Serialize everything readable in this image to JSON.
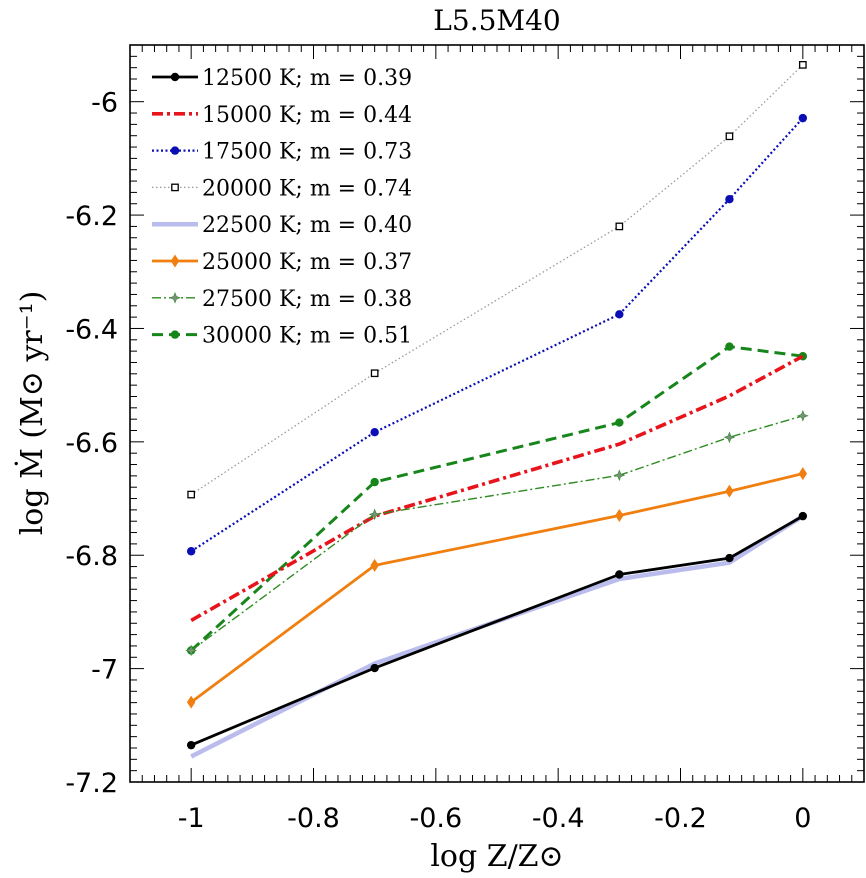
{
  "chart_data": {
    "type": "line",
    "title": "L5.5M40",
    "xlabel": "log Z/Z⊙",
    "ylabel": "log Ṁ (M⊙ yr⁻¹)",
    "xlim": [
      -1.1,
      0.1
    ],
    "ylim": [
      -7.2,
      -5.9
    ],
    "x_ticks": [
      -1,
      -0.8,
      -0.6,
      -0.4,
      -0.2,
      0
    ],
    "x_tick_labels": [
      "-1",
      "-0.8",
      "-0.6",
      "-0.4",
      "-0.2",
      "0"
    ],
    "y_ticks": [
      -7.2,
      -7,
      -6.8,
      -6.6,
      -6.4,
      -6.2,
      -6
    ],
    "y_tick_labels": [
      "-7.2",
      "-7",
      "-6.8",
      "-6.6",
      "-6.4",
      "-6.2",
      "-6"
    ],
    "legend_position": "top-left",
    "x": [
      -1,
      -0.7,
      -0.3,
      -0.12,
      0
    ],
    "series": [
      {
        "name": "12500 K; m = 0.39",
        "color": "#000000",
        "style": "solid",
        "marker": "circle",
        "values": [
          -7.135,
          -6.999,
          -6.834,
          -6.805,
          -6.731
        ]
      },
      {
        "name": "15000 K; m = 0.44",
        "color": "#e8141b",
        "style": "dashdot-thick",
        "marker": "none",
        "values": [
          -6.915,
          -6.731,
          -6.604,
          -6.519,
          -6.449
        ]
      },
      {
        "name": "17500 K; m = 0.73",
        "color": "#0b0eb5",
        "style": "dotted",
        "marker": "circle",
        "values": [
          -6.793,
          -6.583,
          -6.375,
          -6.172,
          -6.029
        ]
      },
      {
        "name": "20000 K; m = 0.74",
        "color": "#9a9a9a",
        "style": "fine-dotted",
        "marker": "open-square",
        "values": [
          -6.693,
          -6.479,
          -6.22,
          -6.061,
          -5.935
        ]
      },
      {
        "name": "22500 K; m = 0.40",
        "color": "#b9bcec",
        "style": "solid-thick",
        "marker": "none",
        "values": [
          -7.155,
          -6.991,
          -6.842,
          -6.813,
          -6.731
        ]
      },
      {
        "name": "25000 K; m = 0.37",
        "color": "#f07f10",
        "style": "solid",
        "marker": "diamond",
        "values": [
          -7.059,
          -6.818,
          -6.73,
          -6.687,
          -6.656
        ]
      },
      {
        "name": "27500 K; m = 0.38",
        "color": "#2e8b22",
        "style": "dashdot-thin",
        "marker": "star",
        "values": [
          -6.968,
          -6.728,
          -6.659,
          -6.592,
          -6.554
        ]
      },
      {
        "name": "30000 K; m = 0.51",
        "color": "#16861a",
        "style": "dashed",
        "marker": "circle",
        "values": [
          -6.968,
          -6.671,
          -6.566,
          -6.432,
          -6.449
        ]
      }
    ]
  }
}
